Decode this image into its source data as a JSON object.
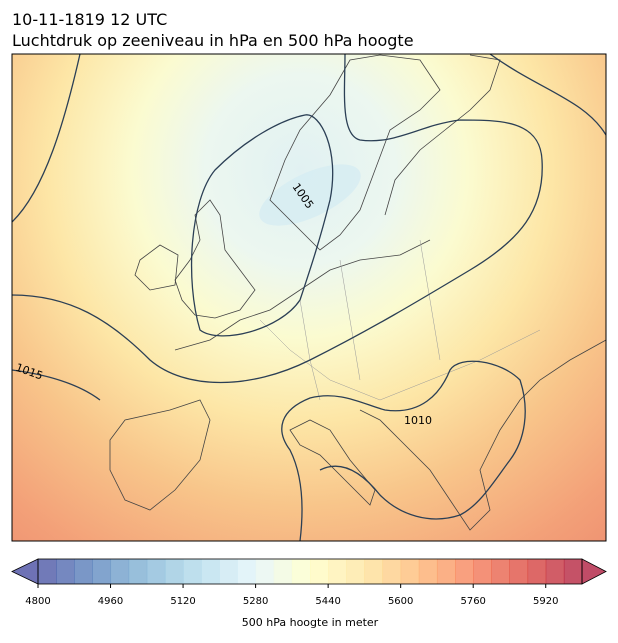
{
  "header": {
    "title": "10-11-1819 12 UTC",
    "subtitle": "Luchtdruk op zeeniveau in hPa en 500 hPa hoogte"
  },
  "map": {
    "contour_labels": [
      1005,
      1015,
      1010
    ]
  },
  "colorbar": {
    "clim": [
      4800,
      6000
    ],
    "levels": 30,
    "ticks": [
      4800,
      4960,
      5120,
      5280,
      5440,
      5600,
      5760,
      5920
    ],
    "cmap": [
      "#313695",
      "#4575b4",
      "#74add1",
      "#abd9e9",
      "#e0f3f8",
      "#ffffbf",
      "#fee090",
      "#fdae61",
      "#f46d43",
      "#d73027",
      "#a50026"
    ],
    "label": "500 hPa hoogte in meter"
  }
}
